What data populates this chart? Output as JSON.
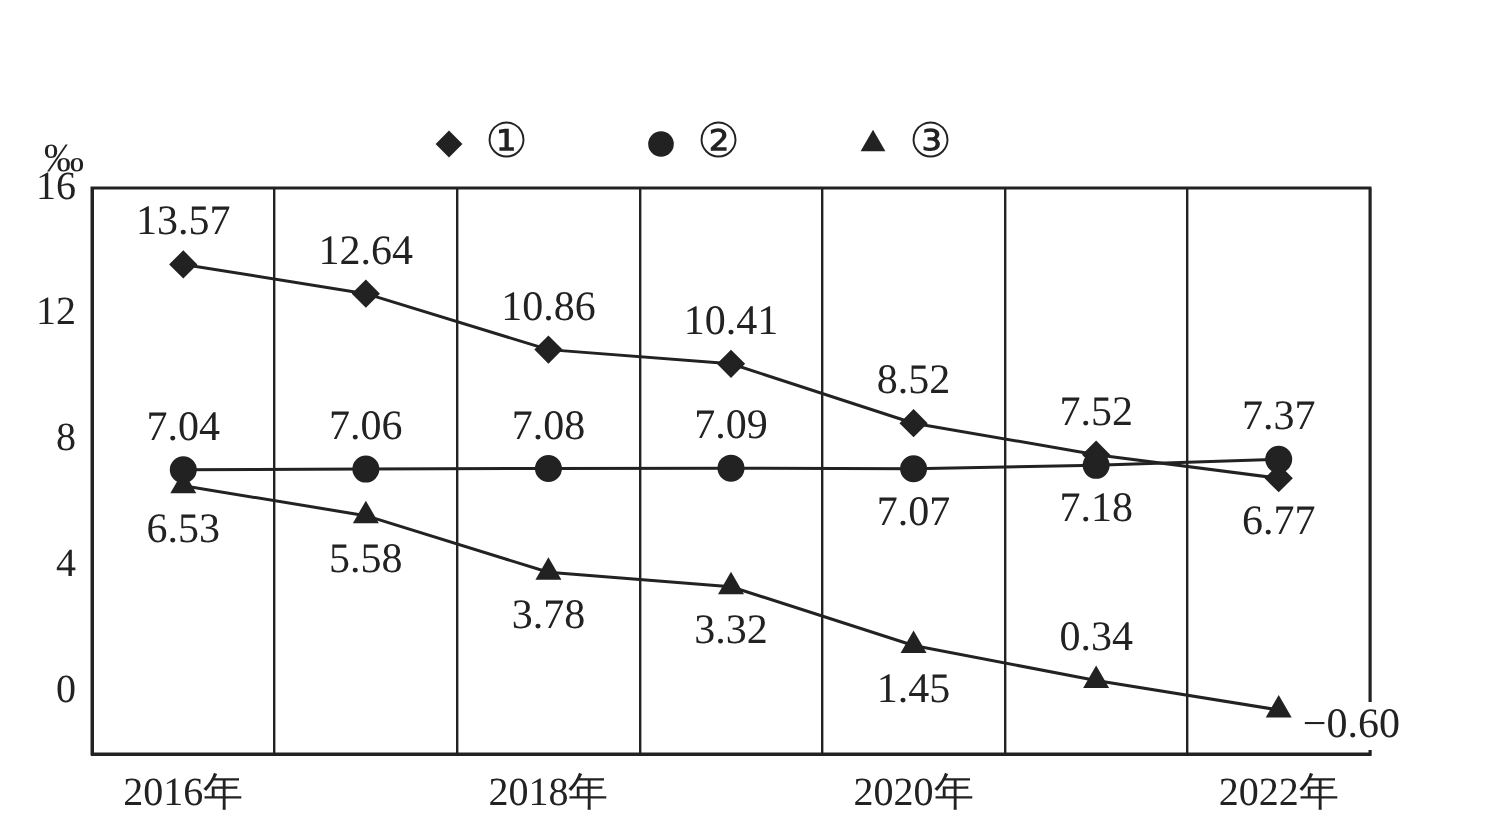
{
  "chart_data": {
    "type": "line",
    "ylabel": "‰",
    "categories": [
      "2016年",
      null,
      "2018年",
      null,
      "2020年",
      null,
      "2022年"
    ],
    "series": [
      {
        "name": "①",
        "color": "#222222",
        "marker": "diamond",
        "values": [
          13.57,
          12.64,
          10.86,
          10.41,
          8.52,
          7.52,
          6.77
        ],
        "value_labels": [
          "13.57",
          "12.64",
          "10.86",
          "10.41",
          "8.52",
          "7.52",
          "6.77"
        ]
      },
      {
        "name": "②",
        "color": "#222222",
        "marker": "circle",
        "values": [
          7.04,
          7.06,
          7.08,
          7.09,
          7.07,
          7.18,
          7.37
        ],
        "value_labels": [
          "7.04",
          "7.06",
          "7.08",
          "7.09",
          "7.07",
          "7.18",
          "7.37"
        ]
      },
      {
        "name": "③",
        "color": "#222222",
        "marker": "triangle",
        "values": [
          6.53,
          5.58,
          3.78,
          3.32,
          1.45,
          0.34,
          -0.6
        ],
        "value_labels": [
          "6.53",
          "5.58",
          "3.78",
          "3.32",
          "1.45",
          "0.34",
          "−0.60"
        ]
      }
    ],
    "ylim": [
      -2,
      16
    ],
    "yticks": [
      0,
      4,
      8,
      12,
      16
    ],
    "grid": "x",
    "legend": "top"
  }
}
